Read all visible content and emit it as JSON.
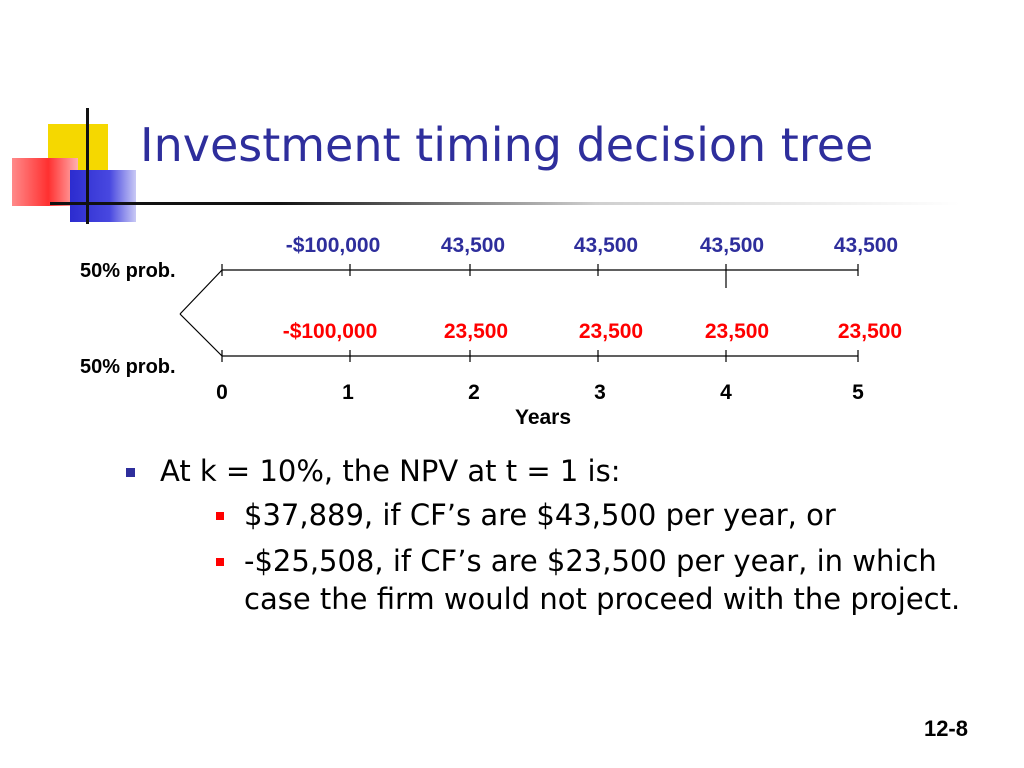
{
  "slide": {
    "title": "Investment timing decision tree",
    "page_number": "12-8"
  },
  "tree": {
    "upper_branch": {
      "prob_label": "50% prob.",
      "cash_flows": [
        "-$100,000",
        "43,500",
        "43,500",
        "43,500",
        "43,500"
      ],
      "color": "#2e2e9c"
    },
    "lower_branch": {
      "prob_label": "50% prob.",
      "cash_flows": [
        "-$100,000",
        "23,500",
        "23,500",
        "23,500",
        "23,500"
      ],
      "color": "#ff0000"
    },
    "years": [
      "0",
      "1",
      "2",
      "3",
      "4",
      "5"
    ],
    "axis_label": "Years"
  },
  "bullets": {
    "main": "At k = 10%, the NPV at t = 1 is:",
    "sub": [
      "$37,889, if CF’s are $43,500 per year, or",
      "-$25,508, if CF’s are $23,500 per year, in which case the firm would not proceed with the project."
    ]
  },
  "colors": {
    "title": "#2e2e9c",
    "main_bullet": "#2e2e9c",
    "sub_bullet": "#ff0000"
  }
}
